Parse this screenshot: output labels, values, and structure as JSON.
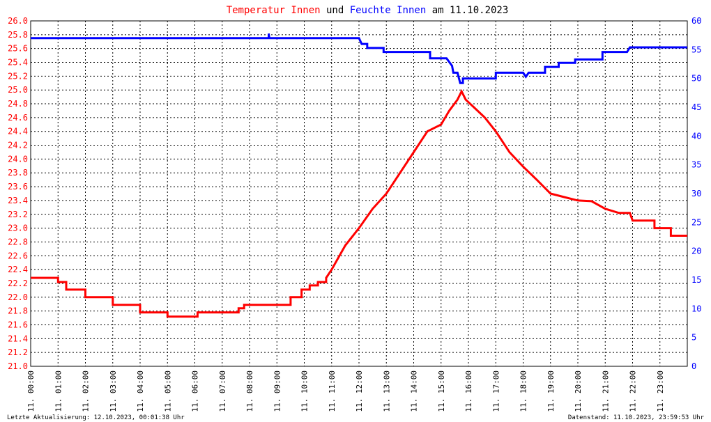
{
  "title": {
    "part1": "Temperatur Innen",
    "part2": " und ",
    "part3": "Feuchte Innen",
    "part4": " am 11.10.2023"
  },
  "footer": {
    "left": "Letzte Aktualisierung: 12.10.2023, 00:01:38 Uhr",
    "right": "Datenstand: 11.10.2023, 23:59:53 Uhr"
  },
  "colors": {
    "temperature": "#ff0000",
    "humidity": "#0000ff",
    "title_text": "#000000",
    "grid": "#000000"
  },
  "chart_data": {
    "type": "line",
    "grid": true,
    "x_axis": {
      "unit": "hour",
      "range": [
        0,
        24
      ],
      "ticks": [
        {
          "x": 0,
          "label": "11. 00:00"
        },
        {
          "x": 1,
          "label": "11. 01:00"
        },
        {
          "x": 2,
          "label": "11. 02:00"
        },
        {
          "x": 3,
          "label": "11. 03:00"
        },
        {
          "x": 4,
          "label": "11. 04:00"
        },
        {
          "x": 5,
          "label": "11. 05:00"
        },
        {
          "x": 6,
          "label": "11. 06:00"
        },
        {
          "x": 7,
          "label": "11. 07:00"
        },
        {
          "x": 8,
          "label": "11. 08:00"
        },
        {
          "x": 9,
          "label": "11. 09:00"
        },
        {
          "x": 10,
          "label": "11. 10:00"
        },
        {
          "x": 11,
          "label": "11. 11:00"
        },
        {
          "x": 12,
          "label": "11. 12:00"
        },
        {
          "x": 13,
          "label": "11. 13:00"
        },
        {
          "x": 14,
          "label": "11. 14:00"
        },
        {
          "x": 15,
          "label": "11. 15:00"
        },
        {
          "x": 16,
          "label": "11. 16:00"
        },
        {
          "x": 17,
          "label": "11. 17:00"
        },
        {
          "x": 18,
          "label": "11. 18:00"
        },
        {
          "x": 19,
          "label": "11. 19:00"
        },
        {
          "x": 20,
          "label": "11. 20:00"
        },
        {
          "x": 21,
          "label": "11. 21:00"
        },
        {
          "x": 22,
          "label": "11. 22:00"
        },
        {
          "x": 23,
          "label": "11. 23:00"
        }
      ]
    },
    "y_left": {
      "range": [
        21.0,
        26.0
      ],
      "ticks": [
        "21.0",
        "21.2",
        "21.4",
        "21.6",
        "21.8",
        "22.0",
        "22.2",
        "22.4",
        "22.6",
        "22.8",
        "23.0",
        "23.2",
        "23.4",
        "23.6",
        "23.8",
        "24.0",
        "24.2",
        "24.4",
        "24.6",
        "24.8",
        "25.0",
        "25.2",
        "25.4",
        "25.6",
        "25.8",
        "26.0"
      ]
    },
    "y_right": {
      "range": [
        0,
        60
      ],
      "ticks": [
        "0",
        "5",
        "10",
        "15",
        "20",
        "25",
        "30",
        "35",
        "40",
        "45",
        "50",
        "55",
        "60"
      ]
    },
    "series": [
      {
        "name": "Temperatur Innen",
        "axis": "left",
        "color": "#ff0000",
        "points": [
          [
            0.0,
            22.28
          ],
          [
            1.0,
            22.28
          ],
          [
            1.0,
            22.22
          ],
          [
            1.3,
            22.22
          ],
          [
            1.3,
            22.11
          ],
          [
            2.0,
            22.11
          ],
          [
            2.0,
            22.0
          ],
          [
            3.0,
            22.0
          ],
          [
            3.0,
            21.89
          ],
          [
            4.0,
            21.89
          ],
          [
            4.0,
            21.78
          ],
          [
            5.0,
            21.78
          ],
          [
            5.0,
            21.72
          ],
          [
            6.1,
            21.72
          ],
          [
            6.1,
            21.78
          ],
          [
            7.6,
            21.78
          ],
          [
            7.6,
            21.84
          ],
          [
            7.8,
            21.84
          ],
          [
            7.8,
            21.89
          ],
          [
            9.5,
            21.89
          ],
          [
            9.5,
            22.0
          ],
          [
            9.9,
            22.0
          ],
          [
            9.9,
            22.11
          ],
          [
            10.2,
            22.11
          ],
          [
            10.2,
            22.17
          ],
          [
            10.5,
            22.17
          ],
          [
            10.5,
            22.22
          ],
          [
            10.8,
            22.22
          ],
          [
            10.8,
            22.28
          ],
          [
            11.0,
            22.4
          ],
          [
            11.5,
            22.75
          ],
          [
            12.0,
            23.0
          ],
          [
            12.5,
            23.28
          ],
          [
            13.0,
            23.5
          ],
          [
            13.5,
            23.8
          ],
          [
            14.0,
            24.1
          ],
          [
            14.5,
            24.4
          ],
          [
            15.0,
            24.5
          ],
          [
            15.3,
            24.7
          ],
          [
            15.6,
            24.86
          ],
          [
            15.75,
            24.98
          ],
          [
            15.9,
            24.86
          ],
          [
            16.2,
            24.75
          ],
          [
            16.6,
            24.6
          ],
          [
            17.0,
            24.4
          ],
          [
            17.5,
            24.1
          ],
          [
            18.0,
            23.89
          ],
          [
            18.5,
            23.7
          ],
          [
            19.0,
            23.5
          ],
          [
            19.5,
            23.45
          ],
          [
            20.0,
            23.4
          ],
          [
            20.5,
            23.39
          ],
          [
            21.0,
            23.28
          ],
          [
            21.5,
            23.22
          ],
          [
            21.9,
            23.22
          ],
          [
            22.0,
            23.11
          ],
          [
            22.8,
            23.11
          ],
          [
            22.8,
            23.0
          ],
          [
            23.4,
            23.0
          ],
          [
            23.4,
            22.89
          ],
          [
            24.0,
            22.89
          ]
        ]
      },
      {
        "name": "Feuchte Innen",
        "axis": "right",
        "color": "#0000ff",
        "points": [
          [
            0.0,
            57
          ],
          [
            8.7,
            57
          ],
          [
            8.7,
            57.8
          ],
          [
            8.72,
            57
          ],
          [
            12.0,
            57
          ],
          [
            12.1,
            56
          ],
          [
            12.3,
            56
          ],
          [
            12.3,
            55.3
          ],
          [
            12.9,
            55.3
          ],
          [
            12.9,
            54.6
          ],
          [
            14.6,
            54.6
          ],
          [
            14.6,
            53.5
          ],
          [
            15.2,
            53.5
          ],
          [
            15.4,
            52.2
          ],
          [
            15.45,
            51
          ],
          [
            15.6,
            51
          ],
          [
            15.7,
            49.2
          ],
          [
            15.8,
            49.2
          ],
          [
            15.8,
            50
          ],
          [
            17.0,
            50
          ],
          [
            17.0,
            51
          ],
          [
            18.0,
            51
          ],
          [
            18.1,
            50.3
          ],
          [
            18.2,
            51
          ],
          [
            18.8,
            51
          ],
          [
            18.8,
            52
          ],
          [
            19.3,
            52
          ],
          [
            19.3,
            52.7
          ],
          [
            19.9,
            52.7
          ],
          [
            19.9,
            53.3
          ],
          [
            20.9,
            53.3
          ],
          [
            20.9,
            54.6
          ],
          [
            21.8,
            54.6
          ],
          [
            21.9,
            55.4
          ],
          [
            24.0,
            55.4
          ]
        ]
      }
    ]
  }
}
